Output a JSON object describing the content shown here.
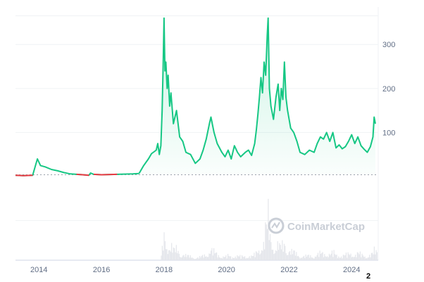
{
  "chart_data": {
    "type": "line",
    "title": "",
    "xlabel": "",
    "ylabel": "",
    "x_ticks": [
      "2014",
      "2016",
      "2018",
      "2020",
      "2022",
      "2024"
    ],
    "y_ticks": [
      100,
      200,
      300
    ],
    "ylim": [
      -190,
      385
    ],
    "xlim": [
      2013.25,
      2024.85
    ],
    "baseline": 4,
    "grid": true,
    "legend": "none",
    "colors": {
      "up": "#16c784",
      "down": "#ea3943",
      "grid": "#eff2f5",
      "baseline": "#9aa0aa",
      "volume": "#e4e6eb"
    },
    "series": [
      {
        "points": [
          [
            2013.25,
            3
          ],
          [
            2013.5,
            2
          ],
          [
            2013.8,
            3
          ],
          [
            2013.9,
            28
          ],
          [
            2013.95,
            40
          ],
          [
            2014.05,
            25
          ],
          [
            2014.2,
            22
          ],
          [
            2014.4,
            16
          ],
          [
            2014.6,
            13
          ],
          [
            2014.8,
            9
          ],
          [
            2015.0,
            6
          ],
          [
            2015.2,
            5
          ],
          [
            2015.4,
            4
          ],
          [
            2015.6,
            3
          ],
          [
            2015.65,
            8
          ],
          [
            2015.75,
            5
          ],
          [
            2016.0,
            4
          ],
          [
            2016.5,
            5
          ],
          [
            2017.0,
            6
          ],
          [
            2017.2,
            7
          ],
          [
            2017.35,
            25
          ],
          [
            2017.5,
            40
          ],
          [
            2017.6,
            52
          ],
          [
            2017.75,
            60
          ],
          [
            2017.8,
            75
          ],
          [
            2017.85,
            50
          ],
          [
            2017.9,
            70
          ],
          [
            2017.94,
            150
          ],
          [
            2017.97,
            250
          ],
          [
            2018.0,
            360
          ],
          [
            2018.03,
            240
          ],
          [
            2018.06,
            260
          ],
          [
            2018.1,
            200
          ],
          [
            2018.13,
            230
          ],
          [
            2018.18,
            160
          ],
          [
            2018.22,
            190
          ],
          [
            2018.3,
            120
          ],
          [
            2018.4,
            150
          ],
          [
            2018.5,
            90
          ],
          [
            2018.6,
            80
          ],
          [
            2018.7,
            55
          ],
          [
            2018.85,
            50
          ],
          [
            2019.0,
            30
          ],
          [
            2019.15,
            40
          ],
          [
            2019.25,
            60
          ],
          [
            2019.35,
            85
          ],
          [
            2019.45,
            120
          ],
          [
            2019.5,
            135
          ],
          [
            2019.6,
            100
          ],
          [
            2019.7,
            75
          ],
          [
            2019.85,
            55
          ],
          [
            2019.95,
            45
          ],
          [
            2020.05,
            60
          ],
          [
            2020.15,
            40
          ],
          [
            2020.25,
            70
          ],
          [
            2020.35,
            55
          ],
          [
            2020.45,
            45
          ],
          [
            2020.6,
            55
          ],
          [
            2020.7,
            60
          ],
          [
            2020.8,
            48
          ],
          [
            2020.9,
            75
          ],
          [
            2020.95,
            105
          ],
          [
            2021.0,
            140
          ],
          [
            2021.05,
            180
          ],
          [
            2021.1,
            225
          ],
          [
            2021.15,
            190
          ],
          [
            2021.2,
            260
          ],
          [
            2021.25,
            230
          ],
          [
            2021.3,
            320
          ],
          [
            2021.33,
            360
          ],
          [
            2021.37,
            200
          ],
          [
            2021.42,
            160
          ],
          [
            2021.5,
            130
          ],
          [
            2021.58,
            180
          ],
          [
            2021.65,
            210
          ],
          [
            2021.7,
            150
          ],
          [
            2021.75,
            200
          ],
          [
            2021.8,
            175
          ],
          [
            2021.85,
            260
          ],
          [
            2021.9,
            180
          ],
          [
            2021.95,
            150
          ],
          [
            2022.05,
            110
          ],
          [
            2022.15,
            100
          ],
          [
            2022.25,
            80
          ],
          [
            2022.35,
            55
          ],
          [
            2022.5,
            50
          ],
          [
            2022.65,
            60
          ],
          [
            2022.8,
            55
          ],
          [
            2022.9,
            75
          ],
          [
            2023.0,
            90
          ],
          [
            2023.1,
            85
          ],
          [
            2023.2,
            100
          ],
          [
            2023.3,
            80
          ],
          [
            2023.4,
            100
          ],
          [
            2023.5,
            65
          ],
          [
            2023.6,
            72
          ],
          [
            2023.7,
            63
          ],
          [
            2023.8,
            68
          ],
          [
            2023.9,
            80
          ],
          [
            2024.0,
            95
          ],
          [
            2024.05,
            85
          ],
          [
            2024.1,
            75
          ],
          [
            2024.2,
            90
          ],
          [
            2024.3,
            70
          ],
          [
            2024.4,
            62
          ],
          [
            2024.5,
            55
          ],
          [
            2024.6,
            68
          ],
          [
            2024.68,
            90
          ],
          [
            2024.72,
            135
          ],
          [
            2024.76,
            120
          ]
        ]
      }
    ]
  },
  "watermark": {
    "text": "CoinMarketCap"
  },
  "corner_label": "2"
}
